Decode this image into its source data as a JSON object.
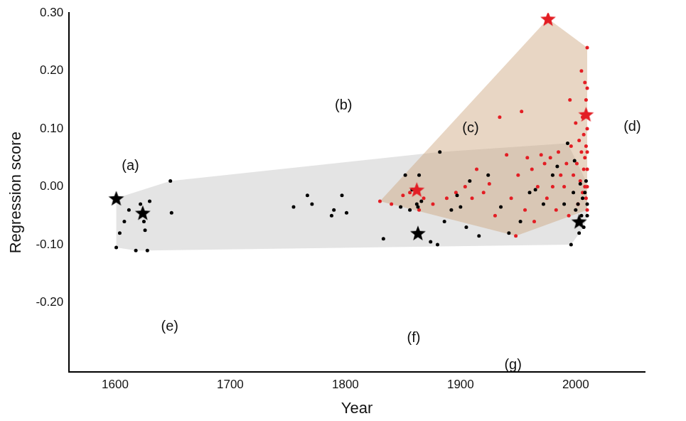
{
  "chart_data": {
    "type": "scatter",
    "x_label": "Year",
    "y_label": "Regression score",
    "xlim": [
      1560,
      2060
    ],
    "xticks": [
      1600,
      1700,
      1800,
      1900,
      2000
    ],
    "ylim": [
      -0.32,
      0.3
    ],
    "yticks": [
      {
        "value": -0.2,
        "label": "-0.20"
      },
      {
        "value": -0.1,
        "label": "-0.10"
      },
      {
        "value": 0,
        "label": "0.00"
      },
      {
        "value": 0.1,
        "label": "0.10"
      },
      {
        "value": 0.2,
        "label": "0.20"
      },
      {
        "value": 0.3,
        "label": "0.30"
      }
    ],
    "grid": false,
    "series": [
      {
        "color": "#000000",
        "marker": "circle",
        "x": [
          1601,
          1604,
          1608,
          1612,
          1618,
          1622,
          1625,
          1626,
          1628,
          1630,
          1648,
          1649,
          1755,
          1767,
          1771,
          1788,
          1790,
          1797,
          1801,
          1833,
          1848,
          1852,
          1856,
          1858,
          1862,
          1863,
          1864,
          1866,
          1874,
          1880,
          1882,
          1886,
          1892,
          1897,
          1900,
          1905,
          1908,
          1916,
          1924,
          1935,
          1942,
          1952,
          1960,
          1965,
          1972,
          1980,
          1984,
          1990,
          1993,
          1996,
          1998,
          2000,
          2002,
          2004,
          2005,
          2006,
          2007,
          2008,
          2009,
          2010,
          2010,
          2003,
          1999
        ],
        "y": [
          -0.105,
          -0.08,
          -0.06,
          -0.04,
          -0.11,
          -0.03,
          -0.06,
          -0.075,
          -0.11,
          -0.025,
          0.01,
          -0.045,
          -0.035,
          -0.015,
          -0.03,
          -0.05,
          -0.04,
          -0.015,
          -0.045,
          -0.09,
          -0.035,
          0.02,
          -0.04,
          -0.005,
          -0.03,
          -0.035,
          0.02,
          -0.025,
          -0.095,
          -0.1,
          0.06,
          -0.06,
          -0.04,
          -0.015,
          -0.035,
          -0.07,
          0.01,
          -0.085,
          0.02,
          -0.035,
          -0.08,
          -0.06,
          -0.01,
          -0.005,
          -0.03,
          0.02,
          0.035,
          -0.03,
          0.075,
          -0.1,
          -0.01,
          -0.04,
          -0.03,
          0.005,
          -0.05,
          -0.02,
          -0.07,
          -0.01,
          0.01,
          -0.03,
          -0.05,
          -0.08,
          0.045
        ]
      },
      {
        "color": "#e31e24",
        "marker": "circle",
        "x": [
          1830,
          1840,
          1850,
          1856,
          1864,
          1868,
          1876,
          1888,
          1896,
          1904,
          1910,
          1914,
          1920,
          1925,
          1930,
          1934,
          1940,
          1944,
          1948,
          1950,
          1953,
          1956,
          1958,
          1962,
          1964,
          1967,
          1970,
          1973,
          1975,
          1978,
          1980,
          1983,
          1985,
          1987,
          1990,
          1992,
          1994,
          1995,
          1996,
          1998,
          2000,
          2001,
          2002,
          2003,
          2004,
          2005,
          2005,
          2006,
          2006,
          2007,
          2007,
          2008,
          2008,
          2008,
          2009,
          2009,
          2009,
          2010,
          2010,
          2010,
          2010,
          2010,
          2010,
          2010
        ],
        "y": [
          -0.025,
          -0.03,
          -0.015,
          -0.01,
          -0.04,
          -0.02,
          -0.03,
          -0.02,
          -0.01,
          0,
          -0.02,
          0.03,
          -0.01,
          0.005,
          -0.05,
          0.12,
          0.055,
          -0.02,
          -0.085,
          0.02,
          0.13,
          -0.04,
          0.05,
          0.03,
          -0.06,
          0,
          0.055,
          0.04,
          -0.02,
          0.05,
          0,
          -0.04,
          0.06,
          0.02,
          0,
          0.04,
          -0.05,
          0.15,
          0.07,
          0.02,
          0.11,
          0.04,
          -0.03,
          0.08,
          0.01,
          0.2,
          0.06,
          -0.01,
          0.12,
          0.03,
          0.09,
          0,
          0.18,
          0.05,
          -0.02,
          0.07,
          0.15,
          0.03,
          0.1,
          -0.04,
          0,
          0.06,
          0.17,
          0.24
        ]
      },
      {
        "color": "#000000",
        "marker": "star",
        "x": [
          1601,
          1624,
          1863,
          2003
        ],
        "y": [
          -0.02,
          -0.045,
          -0.08,
          -0.06
        ],
        "labels": [
          "(a)",
          "(e)",
          "(f)",
          "(g)"
        ]
      },
      {
        "color": "#e31e24",
        "marker": "star",
        "x": [
          1862,
          1976,
          2009
        ],
        "y": [
          -0.005,
          0.29,
          0.125
        ],
        "labels": [
          "(b)",
          "(c)",
          "(d)"
        ]
      }
    ]
  }
}
